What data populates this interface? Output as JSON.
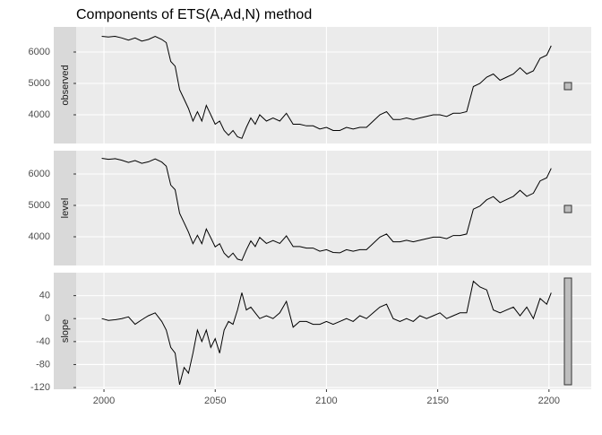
{
  "chart_data": {
    "type": "line",
    "title": "Components of ETS(A,Ad,N) method",
    "color": "#000000",
    "grid": true,
    "x": [
      1999,
      2002,
      2005,
      2008,
      2011,
      2014,
      2017,
      2020,
      2023,
      2026,
      2028,
      2030,
      2032,
      2034,
      2036,
      2038,
      2040,
      2042,
      2044,
      2046,
      2048,
      2050,
      2052,
      2054,
      2056,
      2058,
      2060,
      2062,
      2064,
      2066,
      2068,
      2070,
      2073,
      2076,
      2079,
      2082,
      2085,
      2088,
      2091,
      2094,
      2097,
      2100,
      2103,
      2106,
      2109,
      2112,
      2115,
      2118,
      2121,
      2124,
      2127,
      2130,
      2133,
      2136,
      2139,
      2142,
      2145,
      2148,
      2151,
      2154,
      2157,
      2160,
      2163,
      2166,
      2169,
      2172,
      2175,
      2178,
      2181,
      2184,
      2187,
      2190,
      2193,
      2196,
      2199,
      2201
    ],
    "xlim": [
      1987.5,
      2219
    ],
    "xticks": [
      2000,
      2050,
      2100,
      2150,
      2200
    ],
    "facets": [
      {
        "label": "observed",
        "ylim": [
          3086,
          6800
        ],
        "yticks": [
          4000,
          5000,
          6000
        ],
        "values": [
          6500,
          6480,
          6500,
          6450,
          6380,
          6450,
          6350,
          6400,
          6500,
          6400,
          6300,
          5700,
          5550,
          4800,
          4500,
          4200,
          3800,
          4100,
          3800,
          4300,
          4000,
          3700,
          3800,
          3500,
          3350,
          3500,
          3300,
          3250,
          3600,
          3900,
          3700,
          4000,
          3800,
          3900,
          3800,
          4050,
          3700,
          3700,
          3650,
          3650,
          3550,
          3600,
          3500,
          3500,
          3600,
          3550,
          3600,
          3600,
          3800,
          4000,
          4100,
          3850,
          3850,
          3900,
          3850,
          3900,
          3950,
          4000,
          4000,
          3950,
          4050,
          4050,
          4100,
          4900,
          5000,
          5200,
          5300,
          5100,
          5200,
          5300,
          5500,
          5300,
          5400,
          5800,
          5900,
          6200
        ]
      },
      {
        "label": "level",
        "ylim": [
          3086,
          6743
        ],
        "yticks": [
          4000,
          5000,
          6000
        ],
        "values": [
          6500,
          6470,
          6490,
          6440,
          6370,
          6430,
          6340,
          6390,
          6480,
          6380,
          6250,
          5650,
          5500,
          4750,
          4450,
          4150,
          3780,
          4050,
          3780,
          4250,
          3970,
          3680,
          3780,
          3480,
          3340,
          3480,
          3290,
          3250,
          3580,
          3870,
          3690,
          3980,
          3790,
          3880,
          3790,
          4030,
          3690,
          3690,
          3640,
          3640,
          3540,
          3590,
          3500,
          3490,
          3590,
          3540,
          3590,
          3590,
          3790,
          3990,
          4090,
          3840,
          3840,
          3890,
          3840,
          3890,
          3940,
          3990,
          3990,
          3940,
          4040,
          4040,
          4090,
          4880,
          4980,
          5180,
          5280,
          5090,
          5190,
          5290,
          5480,
          5290,
          5390,
          5780,
          5880,
          6180
        ]
      },
      {
        "label": "slope",
        "ylim": [
          -123,
          80
        ],
        "yticks": [
          40,
          0,
          -40,
          -80,
          -120
        ],
        "values": [
          0,
          -3,
          -2,
          0,
          3,
          -10,
          -2,
          5,
          10,
          -5,
          -20,
          -50,
          -60,
          -115,
          -85,
          -95,
          -60,
          -20,
          -40,
          -20,
          -50,
          -35,
          -60,
          -20,
          -5,
          -10,
          15,
          45,
          15,
          20,
          10,
          0,
          5,
          0,
          10,
          30,
          -15,
          -5,
          -5,
          -10,
          -10,
          -5,
          -10,
          -5,
          0,
          -5,
          5,
          0,
          10,
          20,
          25,
          0,
          -5,
          0,
          -5,
          5,
          0,
          5,
          10,
          0,
          5,
          10,
          10,
          65,
          55,
          50,
          15,
          10,
          15,
          20,
          5,
          20,
          0,
          35,
          25,
          45
        ]
      }
    ]
  }
}
